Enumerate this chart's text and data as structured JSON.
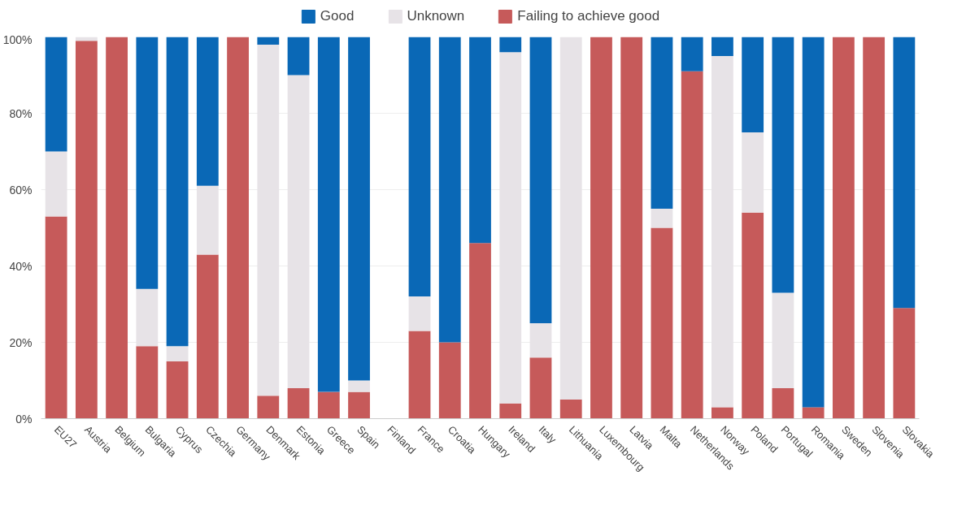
{
  "chart_data": {
    "type": "bar",
    "stacked": true,
    "categories": [
      "EU27",
      "Austria",
      "Belgium",
      "Bulgaria",
      "Cyprus",
      "Czechia",
      "Germany",
      "Denmark",
      "Estonia",
      "Greece",
      "Spain",
      "Finland",
      "France",
      "Croatia",
      "Hungary",
      "Ireland",
      "Italy",
      "Lithuania",
      "Luxembourg",
      "Latvia",
      "Malta",
      "Netherlands",
      "Norway",
      "Poland",
      "Portugal",
      "Romania",
      "Sweden",
      "Slovenia",
      "Slovakia"
    ],
    "series": [
      {
        "name": "Failing to achieve good",
        "color": "#c65a5a",
        "values": [
          53,
          99,
          100,
          19,
          15,
          43,
          100,
          6,
          8,
          7,
          7,
          null,
          23,
          20,
          46,
          4,
          16,
          5,
          100,
          100,
          50,
          91,
          3,
          54,
          8,
          3,
          100,
          100,
          29
        ]
      },
      {
        "name": "Unknown",
        "color": "#e7e3e7",
        "values": [
          17,
          1,
          0,
          15,
          4,
          18,
          0,
          92,
          82,
          0,
          3,
          null,
          9,
          0,
          0,
          92,
          9,
          95,
          0,
          0,
          5,
          0,
          92,
          21,
          25,
          0,
          0,
          0,
          0
        ]
      },
      {
        "name": "Good",
        "color": "#0a68b6",
        "values": [
          30,
          0,
          0,
          66,
          81,
          39,
          0,
          2,
          10,
          93,
          90,
          null,
          68,
          80,
          54,
          4,
          75,
          0,
          0,
          0,
          45,
          9,
          5,
          25,
          67,
          97,
          0,
          0,
          71
        ]
      }
    ],
    "ylim": [
      0,
      100
    ],
    "yticks": [
      {
        "value": 0,
        "label": "0%"
      },
      {
        "value": 20,
        "label": "20%"
      },
      {
        "value": 40,
        "label": "40%"
      },
      {
        "value": 60,
        "label": "60%"
      },
      {
        "value": 80,
        "label": "80%"
      },
      {
        "value": 100,
        "label": "100%"
      }
    ],
    "grid": "y",
    "legend": "top"
  }
}
